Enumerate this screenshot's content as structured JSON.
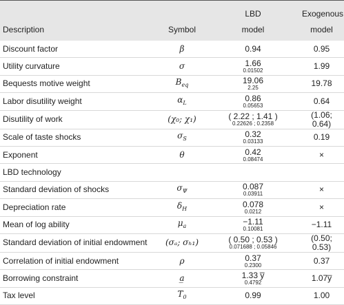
{
  "table": {
    "header": [
      "Description",
      "Symbol",
      [
        "LBD",
        "model"
      ],
      [
        "Exogenous",
        "model"
      ]
    ],
    "rows": [
      {
        "description": "Discount factor",
        "symbol": "β",
        "lbd": "0.94",
        "exo": "0.95"
      },
      {
        "description": "Utility curvature",
        "symbol": "σ",
        "lbd": "1.66",
        "se": "0.01502",
        "exo": "1.99"
      },
      {
        "description": "Bequests motive weight",
        "symbol": "B",
        "symbol_sub": "eq",
        "lbd": "19.06",
        "se": "2.25",
        "exo": "19.78"
      },
      {
        "description": "Labor disutility weight",
        "symbol": "α",
        "symbol_sub": "L",
        "lbd": "0.86",
        "se": "0.05653",
        "exo": "0.64"
      },
      {
        "description": "Disutility of work",
        "symbol": "(χ₀; χ₁)",
        "lbd": "( 2.22 ; 1.41 )",
        "se": "0.22626 ; 0.2358",
        "exo": "(1.06; 0.64)"
      },
      {
        "description": "Scale of taste shocks",
        "symbol": "σ",
        "symbol_sub": "S",
        "lbd": "0.32",
        "se": "0.03133",
        "exo": "0.19"
      },
      {
        "description": "Exponent",
        "symbol": "θ",
        "lbd": "0.42",
        "se": "0.08474",
        "exo": "×"
      },
      {
        "description": "LBD technology"
      },
      {
        "description": "Standard deviation of shocks",
        "symbol": "σ",
        "symbol_sub": "Ψ",
        "lbd": "0.087",
        "se": "0.03911",
        "exo": "×"
      },
      {
        "description": "Depreciation rate",
        "symbol": "δ",
        "symbol_sub": "H",
        "lbd": "0.078",
        "se": "0.0212",
        "exo": "×"
      },
      {
        "description": "Mean of log ability",
        "symbol": "μ",
        "symbol_sub": "a",
        "lbd": "−1.11",
        "se": "0.10081",
        "exo": "−1.11"
      },
      {
        "description": "Standard deviation of initial endowment",
        "symbol": "(σₐ; σₕ₁)",
        "lbd": "( 0.50 ; 0.53 )",
        "se": "0.071688 ; 0.05846",
        "exo": "(0.50; 0.53)"
      },
      {
        "description": "Correlation of initial endowment",
        "symbol": "ρ",
        "lbd": "0.37",
        "se": "0.2300",
        "exo": "0.37"
      },
      {
        "description": "Borrowing constraint",
        "symbol": "a̲",
        "lbd": "1.33 y̅",
        "se": "0.4792",
        "exo": "1.07y̅"
      },
      {
        "description": "Tax level",
        "symbol": "T",
        "symbol_sub": "0",
        "lbd": "0.99",
        "exo": "1.00"
      }
    ]
  }
}
